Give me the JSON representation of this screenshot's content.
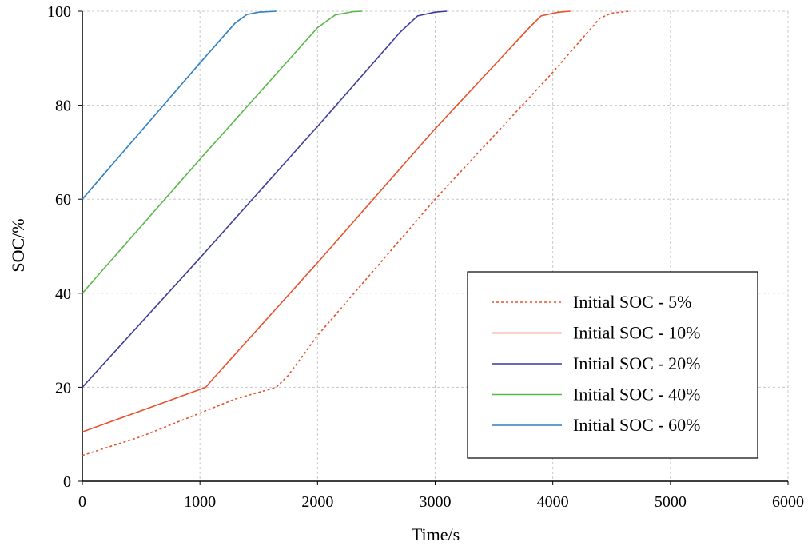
{
  "chart_data": {
    "type": "line",
    "title": "",
    "xlabel": "Time/s",
    "ylabel": "SOC/%",
    "xlim": [
      0,
      6000
    ],
    "ylim": [
      0,
      100
    ],
    "xticks": [
      "0",
      "1000",
      "2000",
      "3000",
      "4000",
      "5000",
      "6000"
    ],
    "yticks": [
      "0",
      "20",
      "40",
      "60",
      "80",
      "100"
    ],
    "grid": true,
    "legend_position": "bottom-right",
    "series": [
      {
        "name": "Initial SOC - 5%",
        "color": "#e8502a",
        "style": "dashed",
        "x": [
          0,
          500,
          1000,
          1300,
          1650,
          1750,
          2000,
          3000,
          4000,
          4400,
          4500,
          4650
        ],
        "y": [
          5.5,
          9.5,
          14.5,
          17.5,
          20,
          22.5,
          31,
          60,
          87,
          98.5,
          99.6,
          100
        ]
      },
      {
        "name": "Initial SOC - 10%",
        "color": "#e8502a",
        "style": "solid",
        "x": [
          0,
          500,
          1050,
          1100,
          2000,
          3000,
          3800,
          3900,
          4050,
          4150
        ],
        "y": [
          10.5,
          15,
          20,
          21.5,
          46.5,
          75,
          96.5,
          99,
          99.8,
          100
        ]
      },
      {
        "name": "Initial SOC - 20%",
        "color": "#3c3c9c",
        "style": "solid",
        "x": [
          0,
          1000,
          2000,
          2700,
          2850,
          3000,
          3100
        ],
        "y": [
          20,
          47.5,
          75.5,
          95.5,
          99,
          99.8,
          100
        ]
      },
      {
        "name": "Initial SOC - 40%",
        "color": "#5ab84a",
        "style": "solid",
        "x": [
          0,
          1000,
          2000,
          2150,
          2300,
          2380
        ],
        "y": [
          40,
          68.5,
          96.5,
          99.2,
          99.9,
          100
        ]
      },
      {
        "name": "Initial SOC - 60%",
        "color": "#2e7fc4",
        "style": "solid",
        "x": [
          0,
          500,
          1000,
          1300,
          1400,
          1500,
          1650
        ],
        "y": [
          60,
          74.5,
          89,
          97.5,
          99.3,
          99.8,
          100
        ]
      }
    ]
  }
}
